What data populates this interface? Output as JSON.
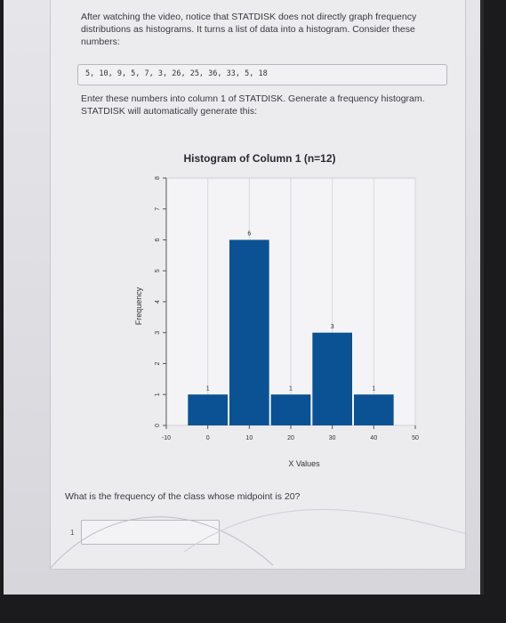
{
  "instructions": {
    "paragraph1": "After watching the video, notice that STATDISK does not directly graph frequency distributions as histograms. It turns a list of data into a histogram. Consider these numbers:",
    "data_list": "5, 10, 9, 5, 7, 3, 26, 25, 36, 33, 5, 18",
    "paragraph2": "Enter these numbers into column 1 of STATDISK. Generate a frequency histogram. STATDISK will automatically generate this:"
  },
  "chart_data": {
    "type": "bar",
    "title": "Histogram of Column 1 (n=12)",
    "xlabel": "X Values",
    "ylabel": "Frequency",
    "xlim": [
      -10,
      50
    ],
    "ylim": [
      0,
      8
    ],
    "x_ticks": [
      -10,
      0,
      10,
      20,
      30,
      40,
      50
    ],
    "y_ticks": [
      0,
      1,
      2,
      3,
      4,
      5,
      6,
      7,
      8
    ],
    "bins": [
      {
        "start": -5,
        "end": 5,
        "value": 1,
        "label": "1"
      },
      {
        "start": 5,
        "end": 15,
        "value": 6,
        "label": "6"
      },
      {
        "start": 15,
        "end": 25,
        "value": 1,
        "label": "1"
      },
      {
        "start": 25,
        "end": 35,
        "value": 3,
        "label": "3"
      },
      {
        "start": 35,
        "end": 45,
        "value": 1,
        "label": "1"
      }
    ],
    "bar_color": "#0b5294",
    "grid": true
  },
  "question": {
    "text": "What is the frequency of the class whose midpoint is 20?",
    "number": "1",
    "answer_value": ""
  }
}
